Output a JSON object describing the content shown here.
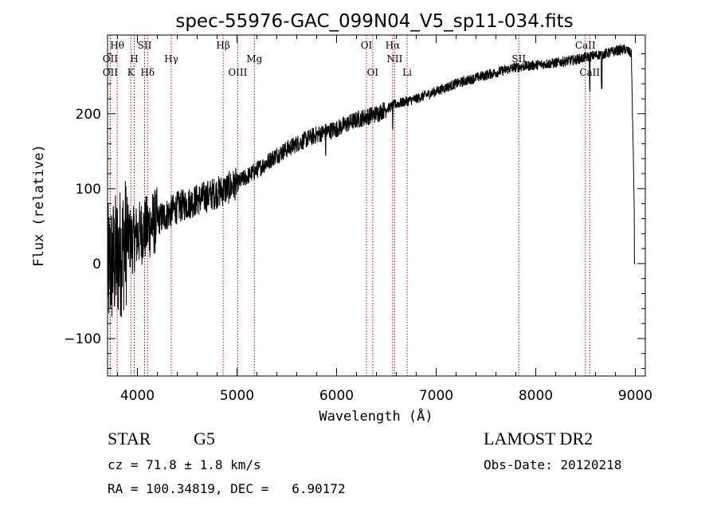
{
  "chart_data": {
    "type": "line",
    "title": "spec-55976-GAC_099N04_V5_sp11-034.fits",
    "xlabel": "Wavelength (Å)",
    "ylabel": "Flux (relative)",
    "xlim": [
      3700,
      9100
    ],
    "ylim": [
      -150,
      305
    ],
    "xticks": [
      4000,
      5000,
      6000,
      7000,
      8000,
      9000
    ],
    "yticks": [
      -100,
      0,
      100,
      200
    ],
    "ytick_labels": [
      "−100",
      "0",
      "100",
      "200"
    ],
    "series": [
      {
        "name": "flux",
        "anchors_x": [
          3700,
          3750,
          3800,
          3850,
          3900,
          3950,
          4000,
          4100,
          4200,
          4300,
          4400,
          4500,
          4600,
          4700,
          4800,
          4900,
          5000,
          5200,
          5400,
          5600,
          5800,
          6000,
          6200,
          6400,
          6600,
          6800,
          7000,
          7200,
          7400,
          7600,
          7800,
          8000,
          8200,
          8400,
          8600,
          8700,
          8800,
          8900,
          8960,
          9000
        ],
        "anchors_y": [
          -10,
          0,
          10,
          20,
          35,
          30,
          38,
          48,
          58,
          66,
          75,
          80,
          85,
          90,
          95,
          100,
          107,
          125,
          145,
          160,
          172,
          180,
          192,
          200,
          213,
          220,
          230,
          240,
          248,
          255,
          262,
          265,
          268,
          272,
          278,
          280,
          284,
          286,
          280,
          0
        ]
      }
    ],
    "spectral_lines": [
      {
        "label": "Hθ",
        "x": 3797,
        "row": 1
      },
      {
        "label": "OII",
        "x": 3727,
        "row": 2
      },
      {
        "label": "OII",
        "x": 3727,
        "row": 3
      },
      {
        "label": "H",
        "x": 3968,
        "row": 2
      },
      {
        "label": "K",
        "x": 3934,
        "row": 3
      },
      {
        "label": "SII",
        "x": 4072,
        "row": 1
      },
      {
        "label": "Hδ",
        "x": 4102,
        "row": 3
      },
      {
        "label": "Hγ",
        "x": 4340,
        "row": 2
      },
      {
        "label": "Hβ",
        "x": 4861,
        "row": 1
      },
      {
        "label": "OIII",
        "x": 5007,
        "row": 3
      },
      {
        "label": "Mg",
        "x": 5175,
        "row": 2
      },
      {
        "label": "OI",
        "x": 6300,
        "row": 1
      },
      {
        "label": "OI",
        "x": 6363,
        "row": 3
      },
      {
        "label": "Hα",
        "x": 6563,
        "row": 1
      },
      {
        "label": "NII",
        "x": 6583,
        "row": 2
      },
      {
        "label": "Li",
        "x": 6708,
        "row": 3
      },
      {
        "label": "SII",
        "x": 7830,
        "row": 2
      },
      {
        "label": "CaII",
        "x": 8498,
        "row": 1
      },
      {
        "label": "CaII",
        "x": 8542,
        "row": 3
      }
    ]
  },
  "info": {
    "object_class": "STAR",
    "subclass": "G5",
    "cz": "cz = 71.8 ± 1.8 km/s",
    "coords": "RA = 100.34819, DEC =   6.90172",
    "survey": "LAMOST DR2",
    "obs_date": "Obs-Date: 20120218"
  },
  "colors": {
    "line_marker": "#c00000",
    "spectrum": "#000000"
  }
}
